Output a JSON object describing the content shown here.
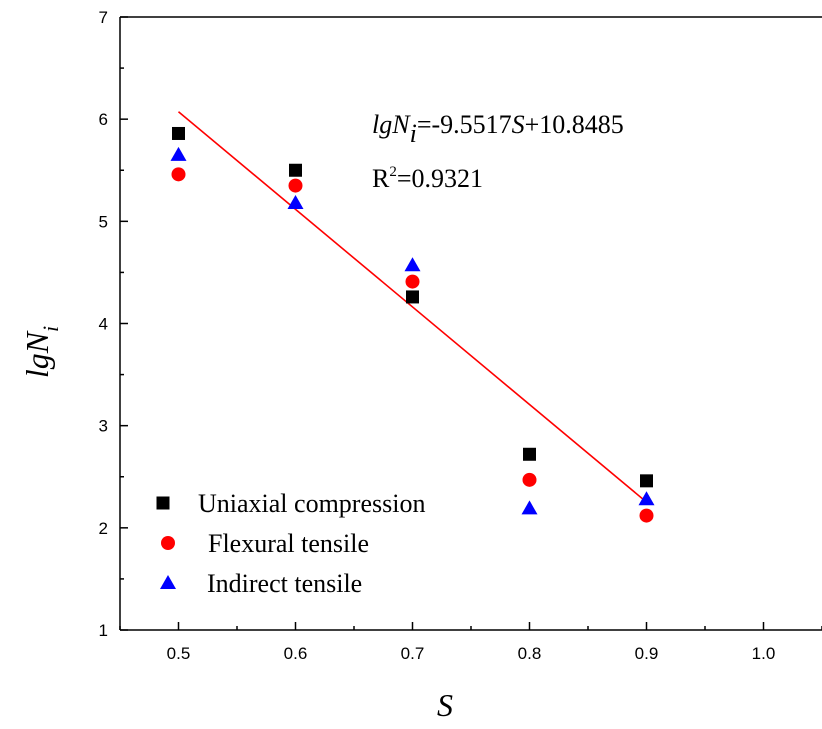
{
  "chart_data": {
    "type": "scatter",
    "x_label": "S",
    "y_label": {
      "base": "lgN",
      "subscript": "i"
    },
    "xlim": [
      0.45,
      1.05
    ],
    "ylim": [
      1,
      7
    ],
    "x_ticks": [
      "0.5",
      "0.6",
      "0.7",
      "0.8",
      "0.9",
      "1.0"
    ],
    "y_ticks": [
      "1",
      "2",
      "3",
      "4",
      "5",
      "6",
      "7"
    ],
    "grid": false,
    "legend_position": "bottom-left",
    "series": [
      {
        "name": "Uniaxial compression",
        "marker": "square",
        "color": "#000000",
        "x": [
          0.5,
          0.6,
          0.7,
          0.8,
          0.9
        ],
        "y": [
          5.86,
          5.5,
          4.26,
          2.72,
          2.46
        ]
      },
      {
        "name": "Flexural tensile",
        "marker": "circle",
        "color": "#ff0000",
        "x": [
          0.5,
          0.6,
          0.7,
          0.8,
          0.9
        ],
        "y": [
          5.46,
          5.35,
          4.41,
          2.47,
          2.12
        ]
      },
      {
        "name": "Indirect tensile",
        "marker": "triangle",
        "color": "#0000ff",
        "x": [
          0.5,
          0.6,
          0.7,
          0.8,
          0.9
        ],
        "y": [
          5.65,
          5.18,
          4.57,
          2.19,
          2.28
        ]
      }
    ],
    "fit": {
      "slope": -9.5517,
      "intercept": 10.8485,
      "x_range": [
        0.5,
        0.9
      ],
      "color": "#ff0000",
      "equation": {
        "prefix": "lgN",
        "sub": "i",
        "middle": "=-9.5517",
        "var": "S",
        "suffix": "+10.8485"
      },
      "r2": {
        "label": "R",
        "sup": "2",
        "value": "=0.9321"
      }
    }
  }
}
